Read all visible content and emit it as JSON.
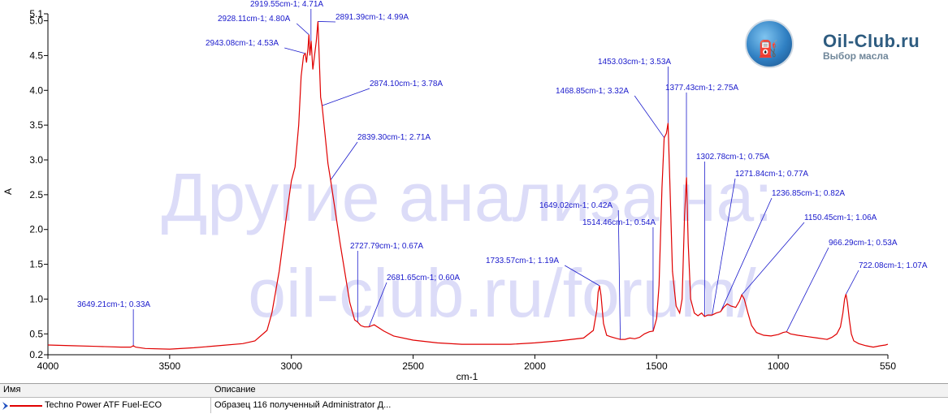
{
  "chart_data": {
    "type": "line",
    "xlabel": "cm-1",
    "ylabel": "A",
    "xlim": [
      4000,
      550
    ],
    "ylim": [
      0.2,
      5.1
    ],
    "x_reversed": true,
    "x_ticks": [
      4000,
      3500,
      3000,
      2500,
      2000,
      1500,
      1000,
      550
    ],
    "y_ticks": [
      {
        "v": 0.2,
        "label": "0.2"
      },
      {
        "v": 0.5,
        "label": "0.5"
      },
      {
        "v": 1.0,
        "label": "1.0"
      },
      {
        "v": 1.5,
        "label": "1.5"
      },
      {
        "v": 2.0,
        "label": "2.0"
      },
      {
        "v": 2.5,
        "label": "2.5"
      },
      {
        "v": 3.0,
        "label": "3.0"
      },
      {
        "v": 3.5,
        "label": "3.5"
      },
      {
        "v": 4.0,
        "label": "4.0"
      },
      {
        "v": 4.5,
        "label": "4.5"
      },
      {
        "v": 5.0,
        "label": "5.0"
      },
      {
        "v": 5.1,
        "label": "5.1"
      }
    ],
    "series": [
      {
        "name": "Techno Power ATF Fuel-ECO",
        "color": "#e00000",
        "points": [
          [
            4000,
            0.34
          ],
          [
            3900,
            0.33
          ],
          [
            3800,
            0.32
          ],
          [
            3700,
            0.31
          ],
          [
            3660,
            0.31
          ],
          [
            3649,
            0.33
          ],
          [
            3640,
            0.31
          ],
          [
            3600,
            0.29
          ],
          [
            3500,
            0.28
          ],
          [
            3400,
            0.3
          ],
          [
            3300,
            0.33
          ],
          [
            3200,
            0.36
          ],
          [
            3150,
            0.4
          ],
          [
            3100,
            0.55
          ],
          [
            3080,
            0.8
          ],
          [
            3050,
            1.4
          ],
          [
            3020,
            2.2
          ],
          [
            3000,
            2.7
          ],
          [
            2985,
            2.9
          ],
          [
            2970,
            3.5
          ],
          [
            2960,
            4.2
          ],
          [
            2950,
            4.5
          ],
          [
            2943,
            4.53
          ],
          [
            2938,
            4.4
          ],
          [
            2932,
            4.6
          ],
          [
            2928,
            4.8
          ],
          [
            2924,
            4.5
          ],
          [
            2919,
            4.71
          ],
          [
            2912,
            4.3
          ],
          [
            2905,
            4.5
          ],
          [
            2898,
            4.7
          ],
          [
            2891,
            4.99
          ],
          [
            2885,
            4.4
          ],
          [
            2880,
            3.9
          ],
          [
            2874,
            3.78
          ],
          [
            2860,
            3.3
          ],
          [
            2850,
            2.95
          ],
          [
            2839,
            2.71
          ],
          [
            2800,
            1.8
          ],
          [
            2760,
            0.95
          ],
          [
            2740,
            0.7
          ],
          [
            2728,
            0.67
          ],
          [
            2715,
            0.62
          ],
          [
            2700,
            0.6
          ],
          [
            2682,
            0.6
          ],
          [
            2660,
            0.63
          ],
          [
            2620,
            0.54
          ],
          [
            2580,
            0.47
          ],
          [
            2500,
            0.41
          ],
          [
            2400,
            0.37
          ],
          [
            2300,
            0.35
          ],
          [
            2200,
            0.35
          ],
          [
            2100,
            0.35
          ],
          [
            2000,
            0.37
          ],
          [
            1900,
            0.4
          ],
          [
            1800,
            0.44
          ],
          [
            1760,
            0.55
          ],
          [
            1745,
            0.85
          ],
          [
            1740,
            1.1
          ],
          [
            1734,
            1.19
          ],
          [
            1728,
            1.05
          ],
          [
            1718,
            0.65
          ],
          [
            1705,
            0.48
          ],
          [
            1690,
            0.46
          ],
          [
            1670,
            0.44
          ],
          [
            1649,
            0.42
          ],
          [
            1630,
            0.42
          ],
          [
            1610,
            0.44
          ],
          [
            1590,
            0.43
          ],
          [
            1570,
            0.45
          ],
          [
            1550,
            0.5
          ],
          [
            1530,
            0.53
          ],
          [
            1514,
            0.54
          ],
          [
            1500,
            0.72
          ],
          [
            1490,
            1.2
          ],
          [
            1478,
            2.6
          ],
          [
            1469,
            3.32
          ],
          [
            1460,
            3.38
          ],
          [
            1453,
            3.53
          ],
          [
            1445,
            2.6
          ],
          [
            1435,
            1.4
          ],
          [
            1420,
            0.9
          ],
          [
            1405,
            0.8
          ],
          [
            1395,
            1.0
          ],
          [
            1385,
            2.2
          ],
          [
            1377,
            2.75
          ],
          [
            1370,
            1.8
          ],
          [
            1360,
            1.0
          ],
          [
            1345,
            0.8
          ],
          [
            1330,
            0.76
          ],
          [
            1315,
            0.8
          ],
          [
            1303,
            0.75
          ],
          [
            1290,
            0.77
          ],
          [
            1272,
            0.77
          ],
          [
            1255,
            0.8
          ],
          [
            1237,
            0.82
          ],
          [
            1225,
            0.88
          ],
          [
            1210,
            0.93
          ],
          [
            1195,
            0.9
          ],
          [
            1175,
            0.88
          ],
          [
            1160,
            0.97
          ],
          [
            1150,
            1.06
          ],
          [
            1140,
            1.0
          ],
          [
            1125,
            0.8
          ],
          [
            1110,
            0.62
          ],
          [
            1090,
            0.52
          ],
          [
            1060,
            0.48
          ],
          [
            1030,
            0.47
          ],
          [
            1000,
            0.49
          ],
          [
            980,
            0.52
          ],
          [
            966,
            0.53
          ],
          [
            950,
            0.5
          ],
          [
            920,
            0.48
          ],
          [
            880,
            0.46
          ],
          [
            840,
            0.44
          ],
          [
            800,
            0.42
          ],
          [
            780,
            0.45
          ],
          [
            760,
            0.5
          ],
          [
            745,
            0.6
          ],
          [
            735,
            0.8
          ],
          [
            728,
            1.0
          ],
          [
            722,
            1.07
          ],
          [
            716,
            0.95
          ],
          [
            708,
            0.7
          ],
          [
            700,
            0.5
          ],
          [
            690,
            0.4
          ],
          [
            670,
            0.36
          ],
          [
            640,
            0.33
          ],
          [
            610,
            0.31
          ],
          [
            580,
            0.33
          ],
          [
            560,
            0.34
          ],
          [
            550,
            0.35
          ]
        ]
      }
    ],
    "annotations": [
      {
        "label": "3649.21cm-1; 0.33A",
        "x": 3649.21,
        "y": 0.33
      },
      {
        "label": "2943.08cm-1; 4.53A",
        "x": 2943.08,
        "y": 4.53
      },
      {
        "label": "2928.11cm-1; 4.80A",
        "x": 2928.11,
        "y": 4.8
      },
      {
        "label": "2919.55cm-1; 4.71A",
        "x": 2919.55,
        "y": 4.71
      },
      {
        "label": "2891.39cm-1; 4.99A",
        "x": 2891.39,
        "y": 4.99
      },
      {
        "label": "2874.10cm-1; 3.78A",
        "x": 2874.1,
        "y": 3.78
      },
      {
        "label": "2839.30cm-1; 2.71A",
        "x": 2839.3,
        "y": 2.71
      },
      {
        "label": "2727.79cm-1; 0.67A",
        "x": 2727.79,
        "y": 0.67
      },
      {
        "label": "2681.65cm-1; 0.60A",
        "x": 2681.65,
        "y": 0.6
      },
      {
        "label": "1733.57cm-1; 1.19A",
        "x": 1733.57,
        "y": 1.19
      },
      {
        "label": "1649.02cm-1; 0.42A",
        "x": 1649.02,
        "y": 0.42
      },
      {
        "label": "1514.46cm-1; 0.54A",
        "x": 1514.46,
        "y": 0.54
      },
      {
        "label": "1468.85cm-1; 3.32A",
        "x": 1468.85,
        "y": 3.32
      },
      {
        "label": "1453.03cm-1; 3.53A",
        "x": 1453.03,
        "y": 3.53
      },
      {
        "label": "1377.43cm-1; 2.75A",
        "x": 1377.43,
        "y": 2.75
      },
      {
        "label": "1302.78cm-1; 0.75A",
        "x": 1302.78,
        "y": 0.75
      },
      {
        "label": "1271.84cm-1; 0.77A",
        "x": 1271.84,
        "y": 0.77
      },
      {
        "label": "1236.85cm-1; 0.82A",
        "x": 1236.85,
        "y": 0.82
      },
      {
        "label": "1150.45cm-1; 1.06A",
        "x": 1150.45,
        "y": 1.06
      },
      {
        "label": "966.29cm-1; 0.53A",
        "x": 966.29,
        "y": 0.53
      },
      {
        "label": "722.08cm-1; 1.07A",
        "x": 722.08,
        "y": 1.07
      }
    ],
    "grid": false,
    "legend": "bottom"
  },
  "watermark": {
    "line1": "Другие анализа на:",
    "line2": "oil-club.ru/forum/"
  },
  "logo": {
    "title": "Oil-Club.ru",
    "subtitle": "Выбор масла"
  },
  "legend_table": {
    "col_name": "Имя",
    "col_desc": "Описание",
    "row_name": "Techno Power ATF Fuel-ECO",
    "row_desc": "Образец 116 полученный Administrator Д..."
  }
}
